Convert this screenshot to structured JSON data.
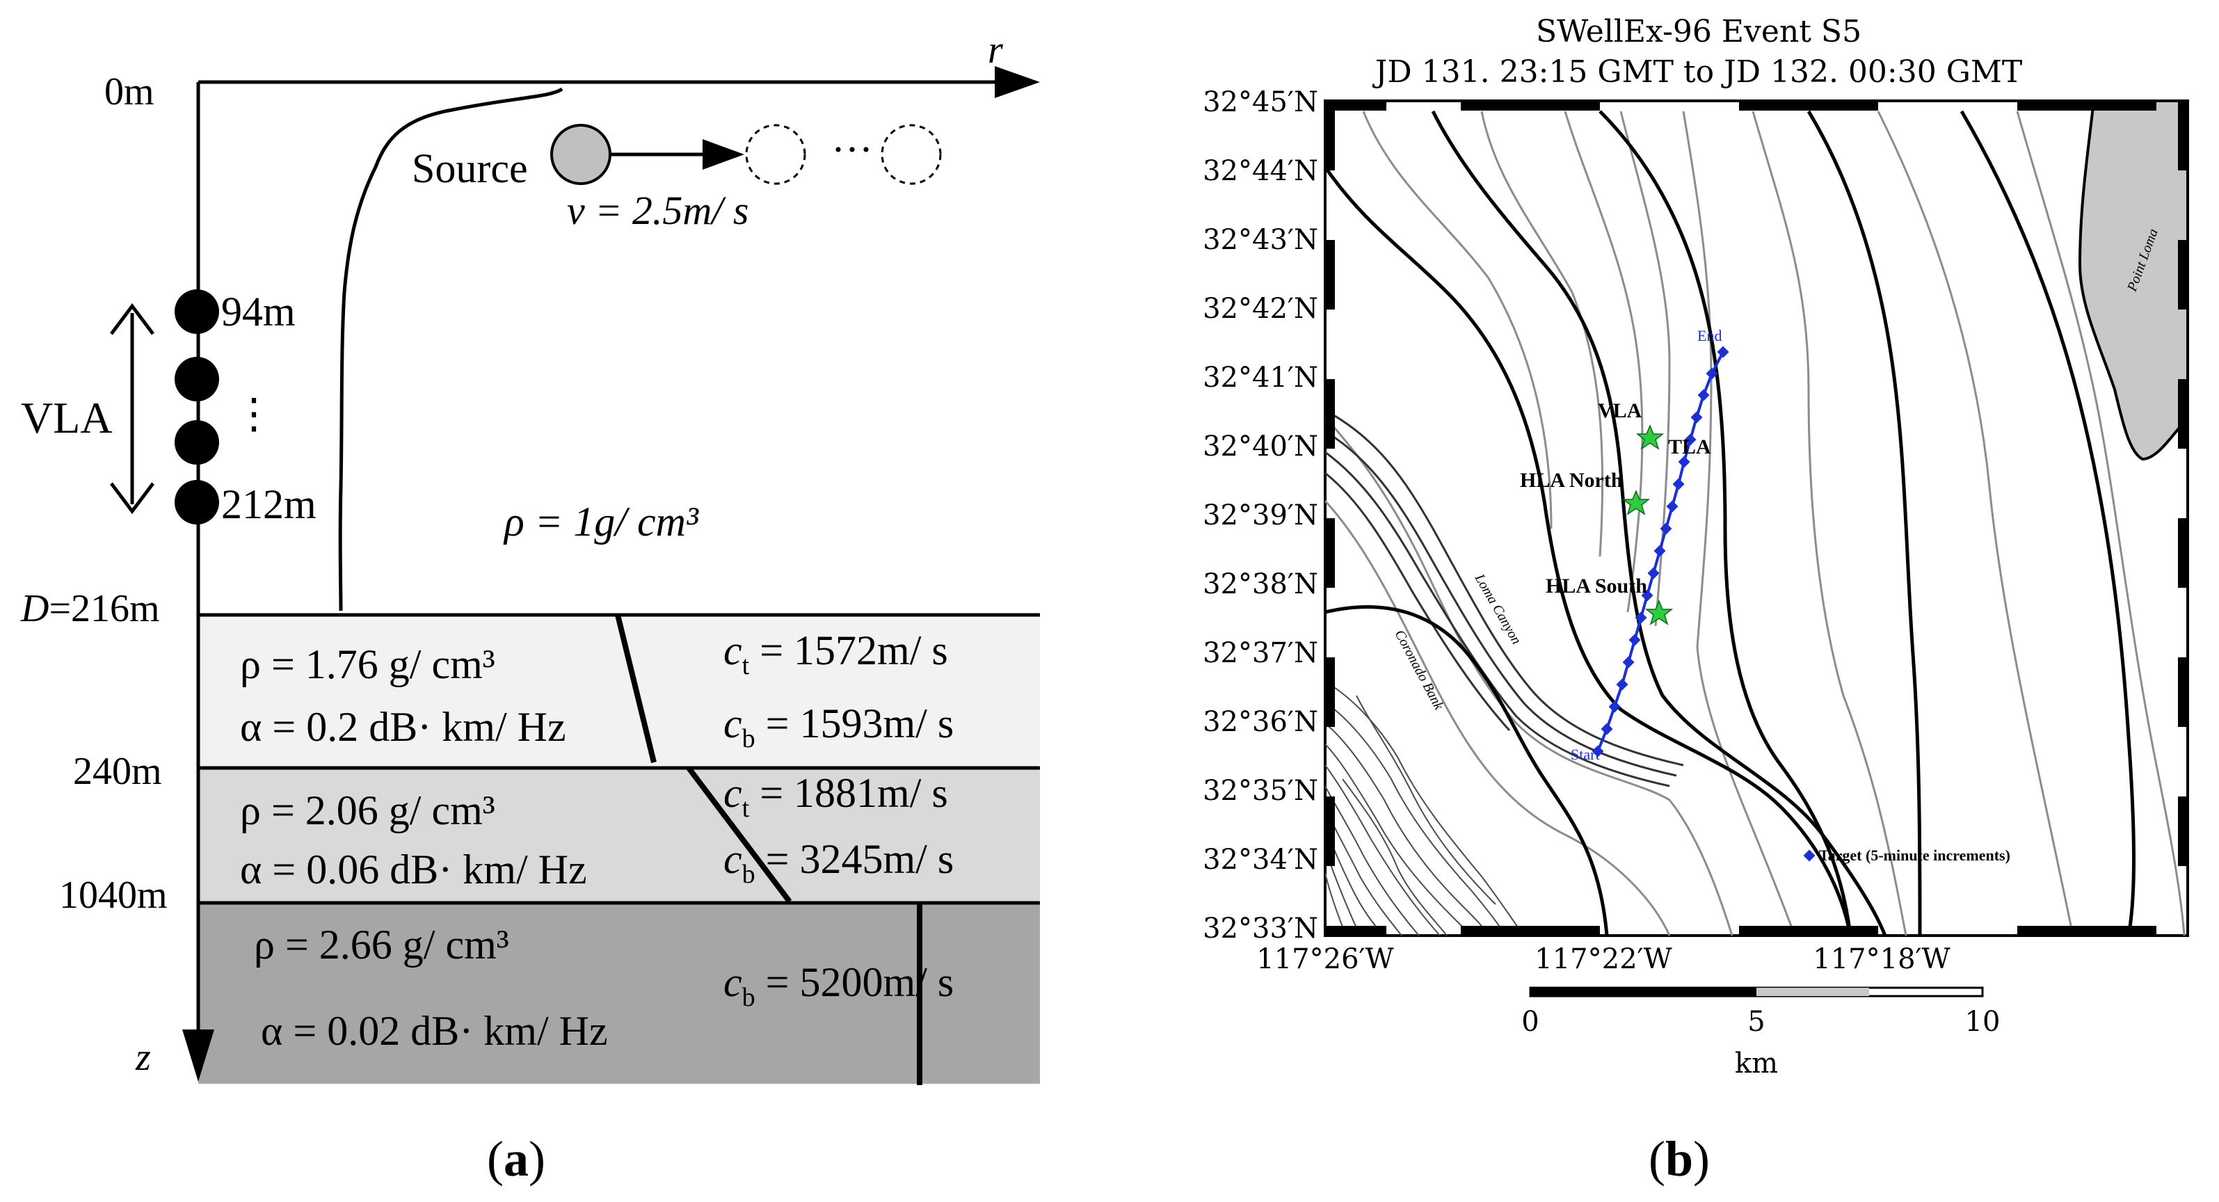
{
  "panel_a": {
    "caption": "(a)",
    "caption_letter": "a",
    "axis_r": "r",
    "axis_z": "z",
    "depth_0": "0m",
    "depth_D": "D",
    "depth_D_value": "=216m",
    "depth_240": "240m",
    "depth_1040": "1040m",
    "source_label": "Source",
    "speed_label": "v = 2.5m/ s",
    "ellipsis": "···",
    "vla_label": "VLA",
    "vla_top": "94m",
    "vla_dots": "⋮",
    "vla_bottom": "212m",
    "water_density": "ρ = 1g/ cm³",
    "layers": [
      {
        "density": "ρ = 1.76 g/ cm³",
        "attenuation": "α = 0.2 dB· km/ Hz",
        "ct": "c",
        "ct_sub": "t",
        "ct_val": " = 1572m/ s",
        "cb": "c",
        "cb_sub": "b",
        "cb_val": " = 1593m/ s",
        "color": "#f2f2f2"
      },
      {
        "density": "ρ = 2.06 g/ cm³",
        "attenuation": "α = 0.06 dB· km/ Hz",
        "ct": "c",
        "ct_sub": "t",
        "ct_val": " = 1881m/ s",
        "cb": "c",
        "cb_sub": "b",
        "cb_val": " = 3245m/ s",
        "color": "#d9d9d9"
      },
      {
        "density": "ρ = 2.66 g/ cm³",
        "attenuation": "α = 0.02 dB· km/ Hz",
        "cb": "c",
        "cb_sub": "b",
        "cb_val": " = 5200m/ s",
        "color": "#a6a6a6"
      }
    ]
  },
  "panel_b": {
    "caption": "(b)",
    "caption_letter": "b",
    "title_line1": "SWellEx-96 Event S5",
    "title_line2": "JD 131. 23:15 GMT to JD 132. 00:30 GMT",
    "lat_labels": [
      "32°45′N",
      "32°44′N",
      "32°43′N",
      "32°42′N",
      "32°41′N",
      "32°40′N",
      "32°39′N",
      "32°38′N",
      "32°37′N",
      "32°36′N",
      "32°35′N",
      "32°34′N",
      "32°33′N"
    ],
    "lon_labels": [
      "117°26′W",
      "117°22′W",
      "117°18′W"
    ],
    "scale_ticks": [
      "0",
      "5",
      "10"
    ],
    "scale_unit": "km",
    "map_labels": {
      "end": "End",
      "start": "Start",
      "vla": "VLA",
      "tla": "TLA",
      "hla_north": "HLA North",
      "hla_south": "HLA South",
      "target": "Target (5-minute increments)",
      "point_loma": "Point Loma",
      "loma_canyon": "Loma Canyon",
      "coronado_bank": "Coronado Bank"
    },
    "colors": {
      "track": "#1a2fd6",
      "star": "#2ecc40",
      "land": "#c8c8c8"
    }
  }
}
